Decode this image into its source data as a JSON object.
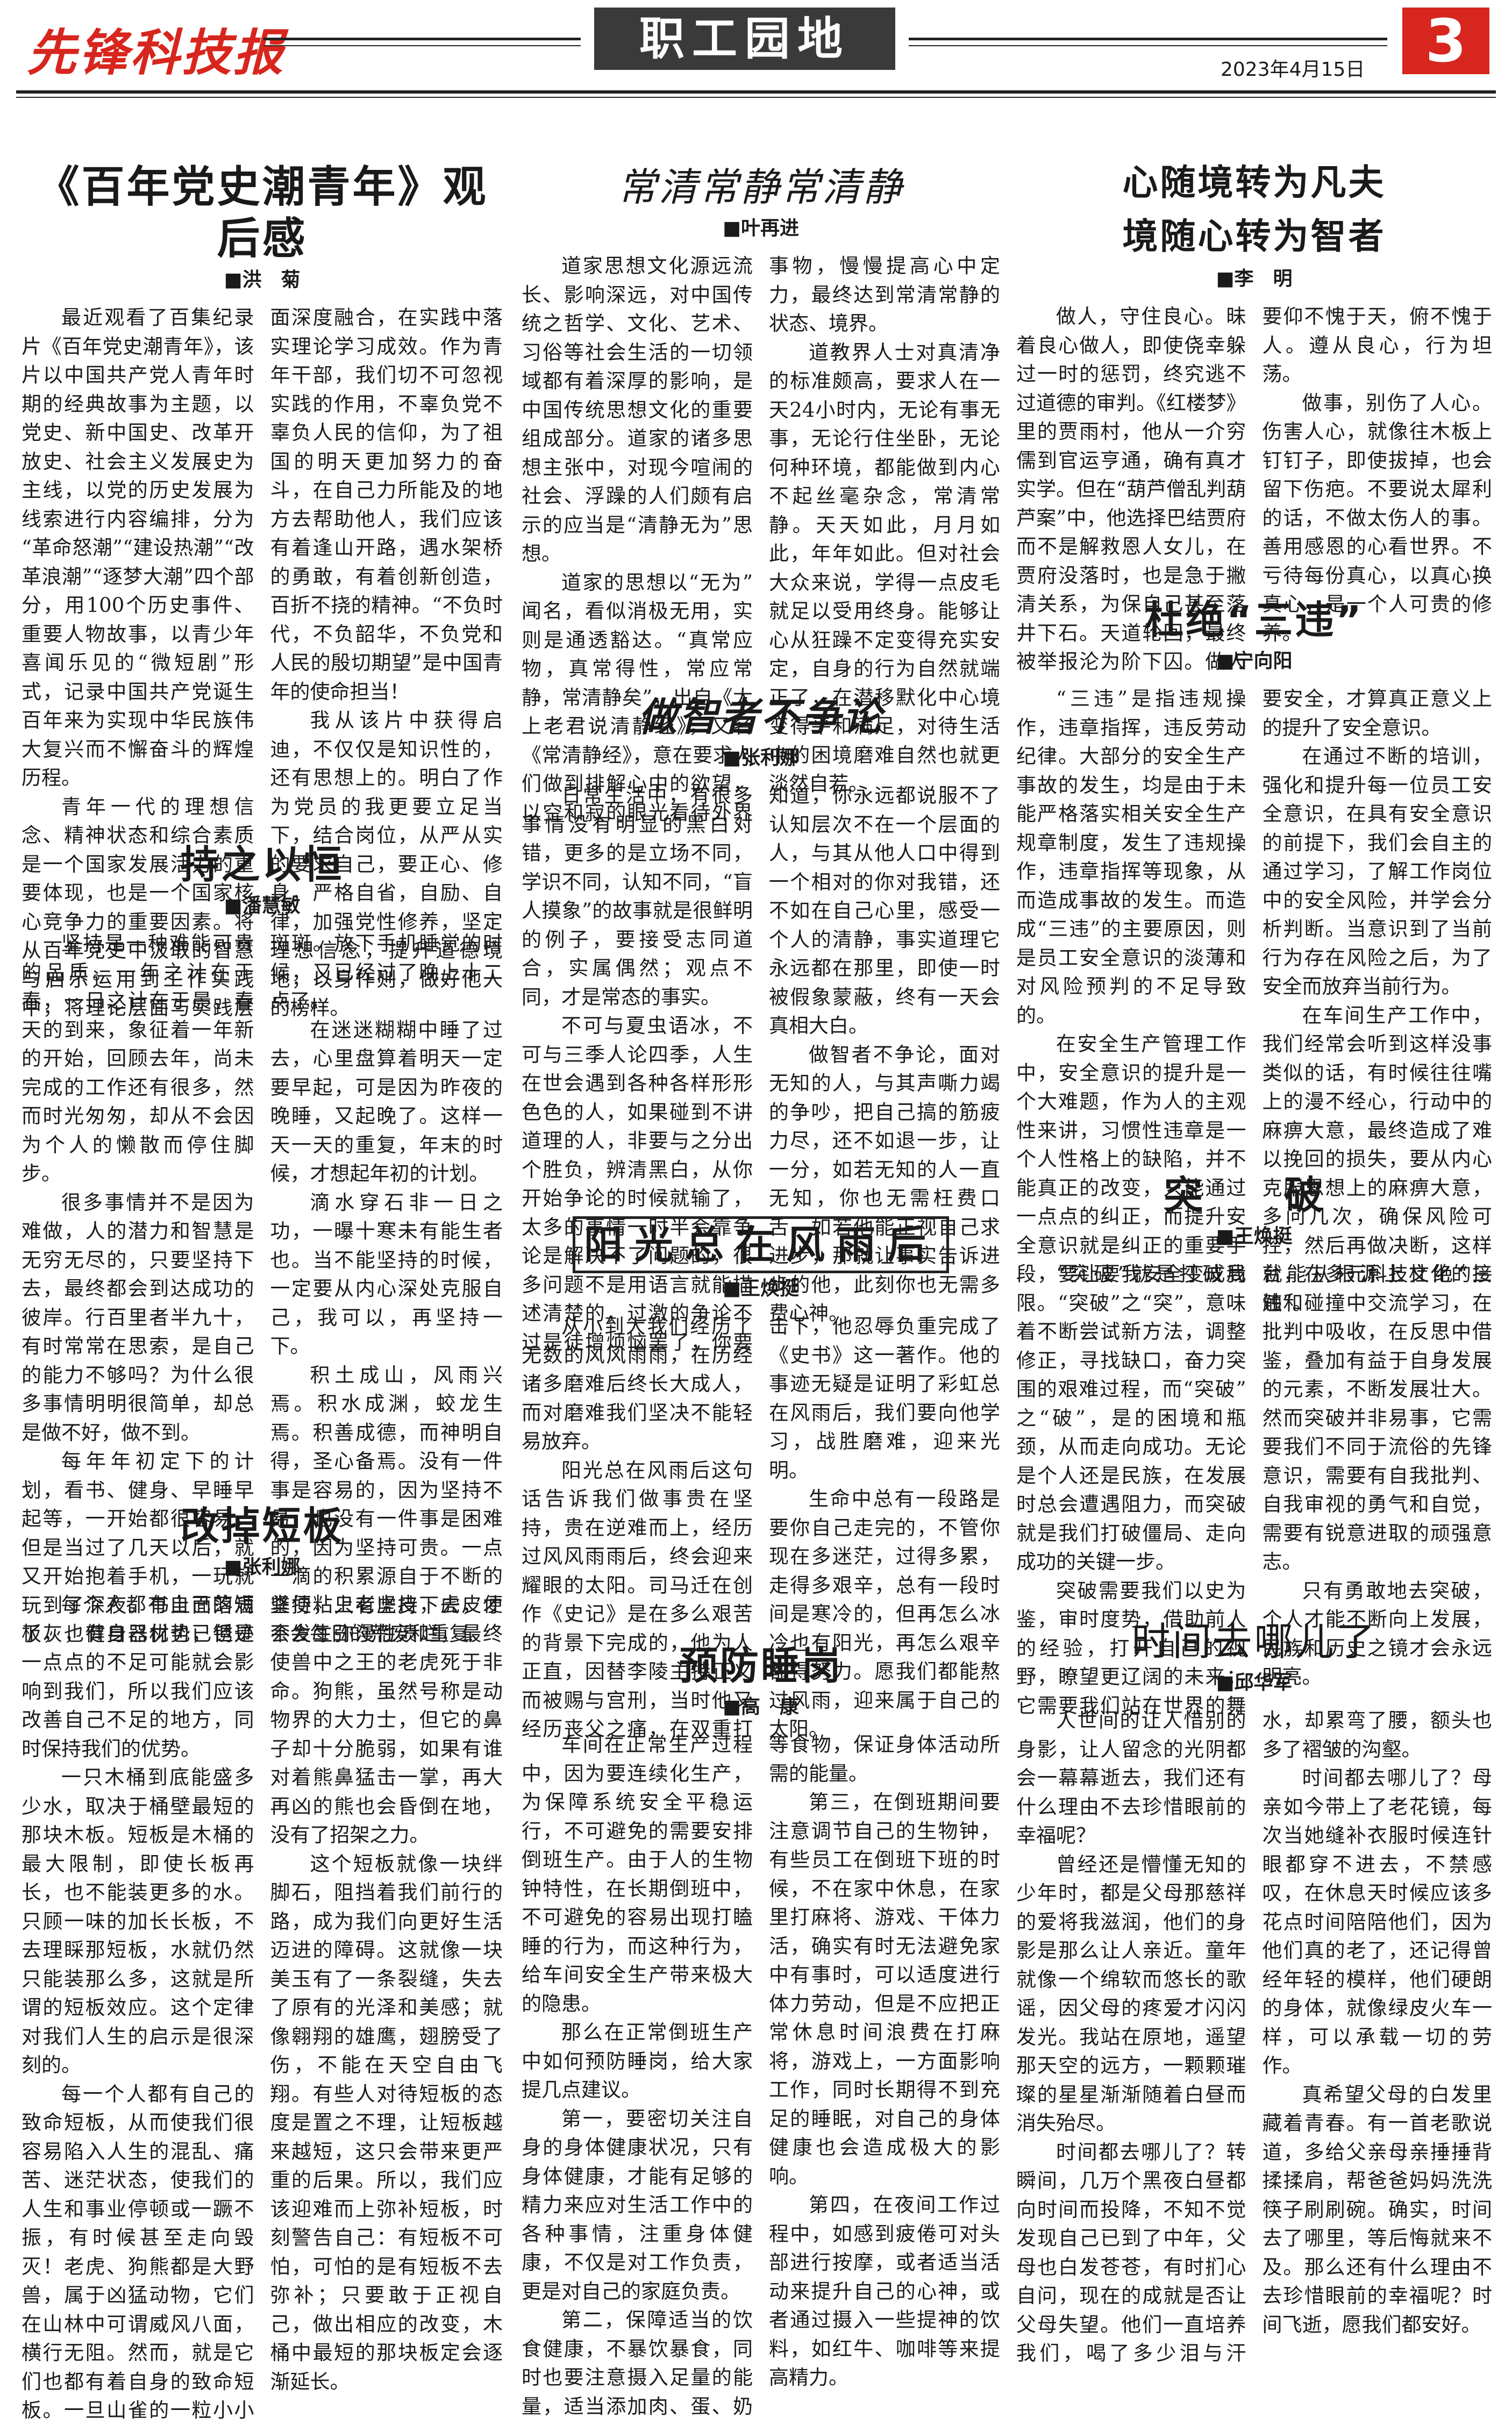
{
  "header": {
    "logo": "先锋科技报",
    "section": "职工园地",
    "page_number": "3",
    "date": "2023年4月15日"
  },
  "articles": [
    {
      "title": [
        "《百年党史潮青年》观后感"
      ],
      "author": "■洪　菊",
      "paragraphs": [
        "最近观看了百集纪录片《百年党史潮青年》，该片以中国共产党人青年时期的经典故事为主题，以党史、新中国史、改革开放史、社会主义发展史为主线，以党的历史发展为线索进行内容编排，分为“革命怒潮”“建设热潮”“改革浪潮”“逐梦大潮”四个部分，用100个历史事件、重要人物故事，以青少年喜闻乐见的“微短剧”形式，记录中国共产党诞生百年来为实现中华民族伟大复兴而不懈奋斗的辉煌历程。",
        "青年一代的理想信念、精神状态和综合素质是一个国家发展活力的重要体现，也是一个国家核心竞争力的重要因素。将从百年党史中汲取的智慧与启示运用到工作实践中，将理论层面与实践层面深度融合，在实践中落实理论学习成效。作为青年干部，我们切不可忽视实践的作用，不辜负党不辜负人民的信仰，为了祖国的明天更加努力的奋斗，在自己力所能及的地方去帮助他人，我们应该有着逢山开路，遇水架桥的勇敢，有着创新创造，百折不挠的精神。“不负时代，不负韶华，不负党和人民的殷切期望”是中国青年的使命担当！",
        "我从该片中获得启迪，不仅仅是知识性的，还有思想上的。明白了作为党员的我更要立足当下，结合岗位，从严从实的要求自己，要正心、修身，严格自省，自励、自律，加强党性修养，坚定理想信念，提升道德境地，以身作则，做好他人的榜样。"
      ]
    },
    {
      "title": [
        "持之以恒"
      ],
      "author": "■潘慧敏",
      "paragraphs": [
        "坚持是一种难能可贵的品质。一年之计在于春，一日之计在于晨。春天的到来，象征着一年新的开始，回顾去年，尚未完成的工作还有很多，然而时光匆匆，却从不会因为个人的懒散而停住脚步。",
        "很多事情并不是因为难做，人的潜力和智慧是无穷无尽的，只要坚持下去，最终都会到达成功的彼岸。行百里者半九十，有时常常在思索，是自己的能力不够吗？为什么很多事情明明很简单，却总是做不好，做不到。",
        "每年年初定下的计划，看书、健身、早睡早起等，一开始都很容易，但是当过了几天以后，就又开始抱着手机，一玩就玩到了深夜。书上面落满了灰，健身器材也已锈迹斑斑。放下手机睡觉的时候，又已经过了晚上十二点了。",
        "在迷迷糊糊中睡了过去，心里盘算着明天一定要早起，可是因为昨夜的晚睡，又起晚了。这样一天一天的重复，年末的时候，才想起年初的计划。",
        "滴水穿石非一日之功，一曝十寒未有能生者也。当不能坚持的时候，一定要从内心深处克服自己，我可以，再坚持一下。",
        "积土成山，风雨兴焉。积水成渊，蛟龙生焉。积善成德，而神明自得，圣心备焉。没有一件事是容易的，因为坚持不易，也没有一件事是困难的，因为坚持可贵。一点一滴的积累源自于不断的坚持，只有坚持下去，才不会每日的荒废和重复。"
      ]
    },
    {
      "title": [
        "改掉短板"
      ],
      "author": "■张利娜",
      "paragraphs": [
        "每个人都有自己的短板，也有自己优势，但是一点点的不足可能就会影响到我们，所以我们应该改善自己不足的地方，同时保持我们的优势。",
        "一只木桶到底能盛多少水，取决于桶壁最短的那块木板。短板是木桶的最大限制，即使长板再长，也不能装更多的水。只顾一味的加长长板，不去理睬那短板，水就仍然只能装那么多，这就是所谓的短板效应。这个定律对我们人生的启示是很深刻的。",
        "每一个人都有自己的致命短板，从而使我们很容易陷入人生的混乱、痛苦、迷茫状态，使我们的人生和事业停顿或一蹶不振，有时候甚至走向毁灭！老虎、狗熊都是大野兽，属于凶猛动物，它们在山林中可谓威风八面，横行无阻。然而，就是它们也都有着自身的致命短板。一旦山雀的一粒小小粪便粘上老虎皮，虎皮便会发生弥漫性溃烂，最终使兽中之王的老虎死于非命。狗熊，虽然号称是动物界的大力士，但它的鼻子却十分脆弱，如果有谁对着熊鼻猛击一掌，再大再凶的熊也会昏倒在地，没有了招架之力。",
        "这个短板就像一块绊脚石，阻挡着我们前行的路，成为我们向更好生活迈进的障碍。这就像一块美玉有了一条裂缝，失去了原有的光泽和美感；就像翱翔的雄鹰，翅膀受了伤，不能在天空自由飞翔。有些人对待短板的态度是置之不理，让短板越来越短，这只会带来更严重的后果。所以，我们应该迎难而上弥补短板，时刻警告自己：有短板不可怕，可怕的是有短板不去弥补；只要敢于正视自己，做出相应的改变，木桶中最短的那块板定会逐渐延长。"
      ]
    },
    {
      "title": [
        "常清常静常清静"
      ],
      "author": "■叶再进",
      "paragraphs": [
        "道家思想文化源远流长、影响深远，对中国传统之哲学、文化、艺术、习俗等社会生活的一切领域都有着深厚的影响，是中国传统思想文化的重要组成部分。道家的诸多思想主张中，对现今喧闹的社会、浮躁的人们颇有启示的应当是“清静无为”思想。",
        "道家的思想以“无为”闻名，看似消极无用，实则是通透豁达。“真常应物，真常得性，常应常静，常清静矣”，出自《太上老君说清静经》，又名《常清静经》，意在要求人们做到排解心中的欲望，以空和寂的眼光看待外界事物，慢慢提高心中定力，最终达到常清常静的状态、境界。",
        "道教界人士对真清净的标准颇高，要求人在一天24小时内，无论有事无事，无论行住坐卧，无论何种环境，都能做到内心不起丝毫杂念，常清常静。天天如此，月月如此，年年如此。但对社会大众来说，学得一点皮毛就足以受用终身。能够让心从狂躁不定变得充实安定，自身的行为自然就端正了，在潜移默化中心境变得平和满足，对待生活中的困境磨难自然也就更淡然自若。"
      ]
    },
    {
      "title": [
        "做智者不争论"
      ],
      "author": "■张利娜",
      "paragraphs": [
        "日常生活中，有很多事情没有明显的黑白对错，更多的是立场不同，学识不同，认知不同，“盲人摸象”的故事就是很鲜明的例子，要接受志同道合，实属偶然；观点不同，才是常态的事实。",
        "不可与夏虫语冰，不可与三季人论四季，人生在世会遇到各种各样形形色色的人，如果碰到不讲道理的人，非要与之分出个胜负，辨清黑白，从你开始争论的时候就输了，太多的事情一时半会靠争论是解决不了问题的，很多问题不是用语言就能描述清楚的，过激的争论不过是徒增烦恼罢了，你要知道，你永远都说服不了认知层次不在一个层面的人，与其从他人口中得到一个相对的你对我错，还不如在自己心里，感受一个人的清静，事实道理它永远都在那里，即使一时被假象蒙蔽，终有一天会真相大白。",
        "做智者不争论，面对无知的人，与其声嘶力竭的争吵，把自己搞的筋疲力尽，还不如退一步，让一分，如若无知的人一直无知，你也无需枉费口舌，如若他能正视自己求进步，那就让事实告诉进步的他，此刻你也无需多费心神。"
      ]
    },
    {
      "title": [
        "阳光总在风雨后"
      ],
      "author": "■王焕挺",
      "paragraphs": [
        "从小到大我们经历了无数的风风雨雨，在历经诸多磨难后终长大成人，而对磨难我们坚决不能轻易放弃。",
        "阳光总在风雨后这句话告诉我们做事贵在坚持，贵在逆难而上，经历过风风雨雨后，终会迎来耀眼的太阳。司马迁在创作《史记》是在多么艰苦的背景下完成的，他为人正直，因替李陵主持正义而被赐与宫刑，当时他又经历丧父之痛，在双重打击下，他忍辱负重完成了《史书》这一著作。他的事迹无疑是证明了彩虹总在风雨后，我们要向他学习，战胜磨难，迎来光明。",
        "生命中总有一段路是要你自己走完的，不管你现在多迷茫，过得多累，走得多艰辛，总有一段时间是寒冷的，但再怎么冰冷也有阳光，再怎么艰辛都得努力。愿我们都能熬过风雨，迎来属于自己的太阳。"
      ]
    },
    {
      "title": [
        "预防睡岗"
      ],
      "author": "■高　康",
      "paragraphs": [
        "车间在正常生产过程中，因为要连续化生产，为保障系统安全平稳运行，不可避免的需要安排倒班生产。由于人的生物钟特性，在长期倒班中，不可避免的容易出现打瞌睡的行为，而这种行为，给车间安全生产带来极大的隐患。",
        "那么在正常倒班生产中如何预防睡岗，给大家提几点建议。",
        "第一，要密切关注自身的身体健康状况，只有身体健康，才能有足够的精力来应对生活工作中的各种事情，注重身体健康，不仅是对工作负责，更是对自己的家庭负责。",
        "第二，保障适当的饮食健康，不暴饮暴食，同时也要注意摄入足量的能量，适当添加肉、蛋、奶等食物，保证身体活动所需的能量。",
        "第三，在倒班期间要注意调节自己的生物钟，有些员工在倒班下班的时候，不在家中休息，在家里打麻将、游戏、干体力活，确实有时无法避免家中有事时，可以适度进行体力劳动，但是不应把正常休息时间浪费在打麻将，游戏上，一方面影响工作，同时长期得不到充足的睡眠，对自己的身体健康也会造成极大的影响。",
        "第四，在夜间工作过程中，如感到疲倦可对头部进行按摩，或者适当活动来提升自己的心神，或者通过摄入一些提神的饮料，如红牛、咖啡等来提高精力。"
      ]
    },
    {
      "title": [
        "心随境转为凡夫",
        "境随心转为智者"
      ],
      "author": "■李　明",
      "paragraphs": [
        "做人，守住良心。昧着良心做人，即使侥幸躲过一时的惩罚，终究逃不过道德的审判。《红楼梦》里的贾雨村，他从一介穷儒到官运亨通，确有真才实学。但在“葫芦僧乱判葫芦案”中，他选择巴结贾府而不是解救恩人女儿，在贾府没落时，也是急于撇清关系，为保自己甚至落井下石。天道轮回，最终被举报沦为阶下囚。做人要仰不愧于天，俯不愧于人。遵从良心，行为坦荡。",
        "做事，别伤了人心。伤害人心，就像往木板上钉钉子，即使拔掉，也会留下伤疤。不要说太犀利的话，不做太伤人的事。善用感恩的心看世界。不亏待每份真心，以真心换真心，是一个人可贵的修养。"
      ]
    },
    {
      "title": [
        "杜绝“三违”"
      ],
      "author": "■宁向阳",
      "paragraphs": [
        "“三违”是指违规操作，违章指挥，违反劳动纪律。大部分的安全生产事故的发生，均是由于未能严格落实相关安全生产规章制度，发生了违规操作，违章指挥等现象，从而造成事故的发生。而造成“三违”的主要原因，则是员工安全意识的淡薄和对风险预判的不足导致的。",
        "在安全生产管理工作中，安全意识的提升是一个大难题，作为人的主观性来讲，习惯性违章是一个人性格上的缺陷，并不能真正的改变，只能通过一点点的纠正，而提升安全意识就是纠正的重要手段，要让要我安全变成我要安全，才算真正意义上的提升了安全意识。",
        "在通过不断的培训，强化和提升每一位员工安全意识，在具有安全意识的前提下，我们会自主的通过学习，了解工作岗位中的安全风险，并学会分析判断。当意识到了当前行为存在风险之后，为了安全而放弃当前行为。",
        "在车间生产工作中，我们经常会听到这样没事类似的话，有时候往往嘴上的漫不经心，行动中的麻痹大意，最终造成了难以挽回的损失，要从内心克服思想上的麻痹大意，多问几次，确保风险可控，然后再做决断，这样就能从根源上杜绝“三违”。"
      ]
    },
    {
      "title": [
        "突　破"
      ],
      "author": "■王焕挺",
      "paragraphs": [
        "“突破”就是打破局限。“突破”之“突”，意味着不断尝试新方法，调整修正，寻找缺口，奋力突围的艰难过程，而“突破”之“破”，是的困境和瓶颈，从而走向成功。无论是个人还是民族，在发展时总会遭遇阻力，而突破就是我们打破僵局、走向成功的关键一步。",
        "突破需要我们以史为鉴，审时度势，借助前人的经验，打开自己的视野，瞭望更辽阔的未来；它需要我们站在世界的舞台，在多元科技文化的接触和碰撞中交流学习，在批判中吸收，在反思中借鉴，叠加有益于自身发展的元素，不断发展壮大。然而突破并非易事，它需要我们不同于流俗的先锋意识，需要有自我批判、自我审视的勇气和自觉，需要有锐意进取的顽强意志。",
        "只有勇敢地去突破，个人才能不断向上发展，民族和历史之镜才会永远明亮。"
      ]
    },
    {
      "title": [
        "时间去哪儿了"
      ],
      "author": "■邱华军",
      "paragraphs": [
        "人世间的让人惜别的身影，让人留念的光阴都会一幕幕逝去，我们还有什么理由不去珍惜眼前的幸福呢？",
        "曾经还是懵懂无知的少年时，都是父母那慈祥的爱将我滋润，他们的身影是那么让人亲近。童年就像一个绵软而悠长的歌谣，因父母的疼爱才闪闪发光。我站在原地，遥望那天空的远方，一颗颗璀璨的星星渐渐随着白昼而消失殆尽。",
        "时间都去哪儿了？转瞬间，几万个黑夜白昼都向时间而投降，不知不觉发现自己已到了中年，父母也白发苍苍，有时扪心自问，现在的成就是否让父母失望。他们一直培养我们，喝了多少泪与汗水，却累弯了腰，额头也多了褶皱的沟壑。",
        "时间都去哪儿了？母亲如今带上了老花镜，每次当她缝补衣服时候连针眼都穿不进去，不禁感叹，在休息天时候应该多花点时间陪陪他们，因为他们真的老了，还记得曾经年轻的模样，他们硬朗的身体，就像绿皮火车一样，可以承载一切的劳作。",
        "真希望父母的白发里藏着青春。有一首老歌说道，多给父亲母亲捶捶背揉揉肩，帮爸爸妈妈洗洗筷子刷刷碗。确实，时间去了哪里，等后悔就来不及。那么还有什么理由不去珍惜眼前的幸福呢？时间飞逝，愿我们都安好。"
      ]
    }
  ]
}
